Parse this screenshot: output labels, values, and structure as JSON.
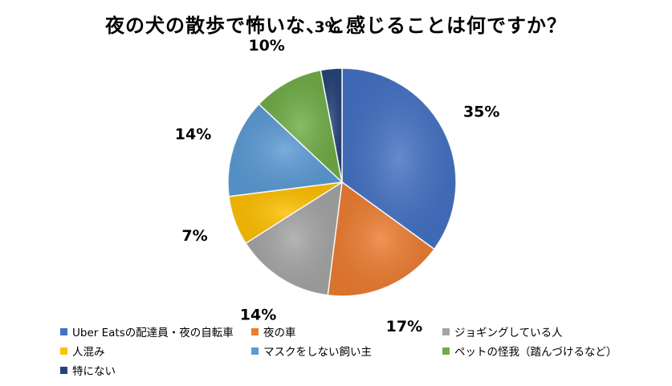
{
  "chart_data": {
    "type": "pie",
    "title": "夜の犬の散歩で怖いな、と感じることは何ですか？",
    "slices": [
      {
        "label": "Uber Eatsの配達員・夜の自転車",
        "value": 35,
        "text": "35%",
        "color": "#4472C4"
      },
      {
        "label": "夜の車",
        "value": 17,
        "text": "17%",
        "color": "#ED7D31"
      },
      {
        "label": "ジョギングしている人",
        "value": 14,
        "text": "14%",
        "color": "#A5A5A5"
      },
      {
        "label": "人混み",
        "value": 7,
        "text": "7%",
        "color": "#FFC000"
      },
      {
        "label": "マスクをしない飼い主",
        "value": 14,
        "text": "14%",
        "color": "#5B9BD5"
      },
      {
        "label": "ペットの怪我（踏んづけるなど）",
        "value": 10,
        "text": "10%",
        "color": "#70AD47"
      },
      {
        "label": "特にない",
        "value": 3,
        "text": "3%",
        "color": "#264478"
      }
    ],
    "start": "12 o'clock",
    "direction": "clockwise",
    "legend_position": "bottom"
  }
}
